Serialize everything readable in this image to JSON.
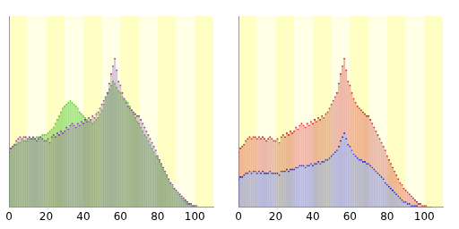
{
  "chart_data": [
    {
      "type": "bar",
      "tick_labels": "x",
      "grid": false,
      "stacked": false,
      "x": [
        0,
        1,
        2,
        3,
        4,
        5,
        6,
        7,
        8,
        9,
        10,
        11,
        12,
        13,
        14,
        15,
        16,
        17,
        18,
        19,
        20,
        21,
        22,
        23,
        24,
        25,
        26,
        27,
        28,
        29,
        30,
        31,
        32,
        33,
        34,
        35,
        36,
        37,
        38,
        39,
        40,
        41,
        42,
        43,
        44,
        45,
        46,
        47,
        48,
        49,
        50,
        51,
        52,
        53,
        54,
        55,
        56,
        57,
        58,
        59,
        60,
        61,
        62,
        63,
        64,
        65,
        66,
        67,
        68,
        69,
        70,
        71,
        72,
        73,
        74,
        75,
        76,
        77,
        78,
        79,
        80,
        81,
        82,
        83,
        84,
        85,
        86,
        87,
        88,
        89,
        90,
        91,
        92,
        93,
        94,
        95,
        96,
        97,
        98,
        99,
        100,
        101,
        102,
        103,
        104
      ],
      "xlim": [
        0,
        110
      ],
      "xticks": [
        0,
        20,
        40,
        60,
        80,
        100
      ],
      "ylim": [
        0,
        100
      ],
      "series": [
        {
          "color": "#66cc44",
          "values": [
            30,
            31,
            32,
            33,
            33,
            34,
            34,
            35,
            35,
            35,
            35,
            36,
            36,
            36,
            36,
            37,
            37,
            37,
            38,
            38,
            38,
            39,
            40,
            41,
            42,
            44,
            46,
            48,
            50,
            52,
            53,
            54,
            55,
            56,
            55,
            54,
            53,
            52,
            50,
            49,
            48,
            47,
            46,
            45,
            45,
            44,
            45,
            46,
            47,
            49,
            51,
            54,
            57,
            60,
            62,
            64,
            66,
            65,
            63,
            61,
            60,
            58,
            57,
            56,
            55,
            53,
            51,
            49,
            47,
            45,
            44,
            42,
            40,
            38,
            37,
            35,
            33,
            31,
            29,
            27,
            26,
            24,
            22,
            20,
            18,
            16,
            14,
            13,
            11,
            10,
            8,
            7,
            6,
            5,
            4,
            3,
            2,
            2,
            1,
            1,
            1,
            0,
            0,
            0,
            0
          ]
        },
        {
          "color": "#8844aa",
          "values": [
            29,
            31,
            32,
            33,
            35,
            36,
            37,
            36,
            37,
            37,
            36,
            37,
            36,
            37,
            36,
            35,
            36,
            37,
            36,
            35,
            35,
            36,
            34,
            37,
            38,
            37,
            39,
            38,
            40,
            39,
            40,
            42,
            41,
            43,
            44,
            43,
            42,
            44,
            43,
            45,
            44,
            46,
            45,
            47,
            46,
            48,
            47,
            49,
            50,
            52,
            54,
            56,
            58,
            60,
            65,
            70,
            74,
            78,
            72,
            66,
            64,
            60,
            57,
            55,
            53,
            52,
            51,
            50,
            49,
            48,
            48,
            46,
            44,
            42,
            40,
            38,
            36,
            34,
            32,
            30,
            27,
            25,
            23,
            21,
            19,
            17,
            15,
            13,
            12,
            10,
            9,
            8,
            7,
            6,
            5,
            4,
            3,
            2,
            2,
            1,
            1,
            1,
            0,
            0,
            0
          ]
        }
      ]
    },
    {
      "type": "bar",
      "tick_labels": "x",
      "grid": false,
      "stacked": true,
      "x": [
        0,
        1,
        2,
        3,
        4,
        5,
        6,
        7,
        8,
        9,
        10,
        11,
        12,
        13,
        14,
        15,
        16,
        17,
        18,
        19,
        20,
        21,
        22,
        23,
        24,
        25,
        26,
        27,
        28,
        29,
        30,
        31,
        32,
        33,
        34,
        35,
        36,
        37,
        38,
        39,
        40,
        41,
        42,
        43,
        44,
        45,
        46,
        47,
        48,
        49,
        50,
        51,
        52,
        53,
        54,
        55,
        56,
        57,
        58,
        59,
        60,
        61,
        62,
        63,
        64,
        65,
        66,
        67,
        68,
        69,
        70,
        71,
        72,
        73,
        74,
        75,
        76,
        77,
        78,
        79,
        80,
        81,
        82,
        83,
        84,
        85,
        86,
        87,
        88,
        89,
        90,
        91,
        92,
        93,
        94,
        95,
        96,
        97,
        98,
        99,
        100,
        101,
        102,
        103,
        104
      ],
      "xlim": [
        0,
        110
      ],
      "xticks": [
        0,
        20,
        40,
        60,
        80,
        100
      ],
      "ylim": [
        0,
        100
      ],
      "series": [
        {
          "color": "#cc3333",
          "values": [
            14,
            15,
            16,
            16,
            17,
            18,
            18,
            18,
            18,
            18,
            18,
            18,
            18,
            18,
            18,
            17,
            18,
            18,
            18,
            17,
            17,
            18,
            17,
            18,
            19,
            18,
            19,
            19,
            20,
            19,
            20,
            21,
            20,
            21,
            22,
            21,
            21,
            22,
            21,
            22,
            22,
            23,
            22,
            23,
            23,
            24,
            23,
            24,
            25,
            26,
            27,
            28,
            29,
            30,
            33,
            35,
            37,
            39,
            36,
            33,
            32,
            30,
            29,
            28,
            27,
            27,
            26,
            26,
            25,
            25,
            25,
            24,
            23,
            22,
            21,
            20,
            19,
            18,
            17,
            17,
            15,
            14,
            13,
            12,
            11,
            10,
            9,
            8,
            8,
            7,
            6,
            6,
            5,
            5,
            4,
            3,
            2,
            2,
            2,
            1,
            1,
            1,
            0,
            0,
            0
          ]
        },
        {
          "color": "#3333cc",
          "values": [
            15,
            16,
            16,
            17,
            18,
            18,
            19,
            18,
            19,
            19,
            18,
            19,
            18,
            19,
            18,
            18,
            18,
            19,
            18,
            18,
            18,
            18,
            17,
            19,
            19,
            19,
            20,
            19,
            20,
            20,
            20,
            21,
            21,
            22,
            22,
            22,
            21,
            22,
            22,
            23,
            22,
            23,
            23,
            24,
            23,
            24,
            24,
            25,
            25,
            26,
            27,
            28,
            29,
            30,
            32,
            35,
            37,
            39,
            36,
            33,
            32,
            30,
            28,
            27,
            26,
            25,
            25,
            24,
            24,
            23,
            23,
            22,
            21,
            20,
            19,
            18,
            17,
            16,
            15,
            13,
            12,
            11,
            10,
            9,
            8,
            7,
            6,
            5,
            4,
            3,
            3,
            2,
            2,
            1,
            1,
            1,
            1,
            0,
            0,
            0,
            0,
            0,
            0,
            0,
            0
          ]
        }
      ]
    }
  ]
}
